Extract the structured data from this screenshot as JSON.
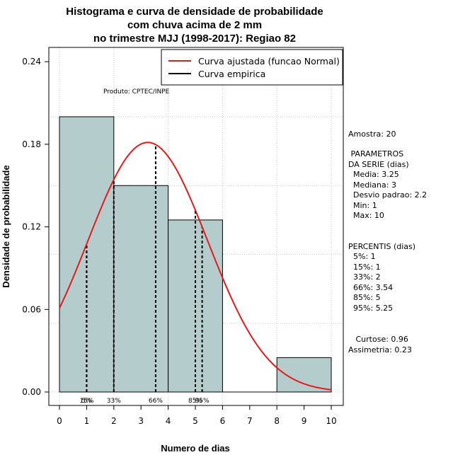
{
  "chart_data": {
    "type": "bar",
    "title": [
      "Histograma e curva de densidade de probabilidade",
      "com chuva acima de 2 mm",
      "no trimestre MJJ (1998-2017): Regiao 82"
    ],
    "xlabel": "Numero de dias",
    "ylabel": "Densidade de probabilidade",
    "xlim": [
      -0.4,
      10.4
    ],
    "ylim": [
      0,
      0.24
    ],
    "xticks": [
      0,
      1,
      2,
      3,
      4,
      5,
      6,
      7,
      8,
      9,
      10
    ],
    "yticks": [
      "0.00",
      "0.06",
      "0.12",
      "0.18",
      "0.24"
    ],
    "bins": [
      {
        "from": 0,
        "to": 2,
        "density": 0.2
      },
      {
        "from": 2,
        "to": 4,
        "density": 0.15
      },
      {
        "from": 4,
        "to": 6,
        "density": 0.125
      },
      {
        "from": 6,
        "to": 8,
        "density": 0.0
      },
      {
        "from": 8,
        "to": 10,
        "density": 0.025
      }
    ],
    "fit_curve": {
      "name": "Curva ajustada (funcao Normal)",
      "color": "#e41a1c",
      "mean": 3.25,
      "sd": 2.2
    },
    "percentile_lines": [
      {
        "label": "5%",
        "x": 1
      },
      {
        "label": "15%",
        "x": 1
      },
      {
        "label": "33%",
        "x": 2
      },
      {
        "label": "66%",
        "x": 3.54
      },
      {
        "label": "85%",
        "x": 5
      },
      {
        "label": "95%",
        "x": 5.25
      }
    ],
    "legend": [
      {
        "label": "Curva ajustada (funcao Normal)",
        "color": "#e41a1c"
      },
      {
        "label": "Curva empirica",
        "color": "#000000"
      }
    ],
    "legend_position": "top-right",
    "bar_color": "#b5cccc",
    "grid": true,
    "product_note": "Produto: CPTEC/INPE"
  },
  "side_panel": {
    "amostra": "Amostra: 20",
    "params_title": [
      " PARAMETROS",
      "DA SERIE (dias)"
    ],
    "params": [
      "  Media: 3.25",
      "  Mediana: 3",
      "  Desvio padrao: 2.2",
      "  Min: 1",
      "  Max: 10"
    ],
    "percentis_title": "PERCENTIS (dias)",
    "percentis": [
      "  5%: 1",
      "  15%: 1",
      "  33%: 2",
      "  66%: 3.54",
      "  85%: 5",
      "  95%: 5.25"
    ],
    "curtose": "   Curtose: 0.96",
    "assimetria": "Assimetria: 0.23"
  }
}
